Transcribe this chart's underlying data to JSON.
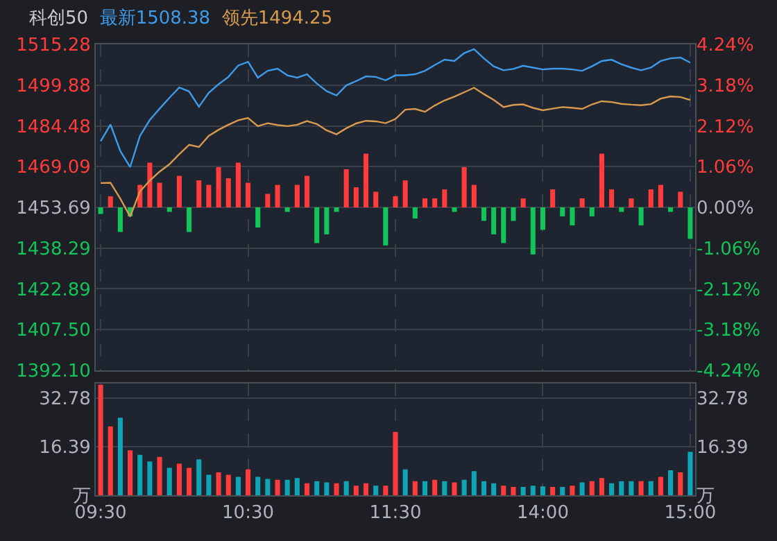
{
  "chart_data": [
    {
      "type": "line",
      "title": "科创50",
      "legend": "top left",
      "grid": true,
      "tick_labels": "y",
      "categories": [
        null,
        null,
        null,
        null,
        null,
        null,
        null,
        null,
        null,
        null,
        null,
        null,
        null,
        null,
        null,
        null,
        null,
        null,
        null,
        null,
        null,
        null,
        null,
        null,
        null,
        null,
        null,
        null,
        null,
        null,
        null,
        null,
        null,
        null,
        null,
        null,
        null,
        null,
        null,
        null,
        null,
        null,
        null,
        null,
        null,
        null,
        null,
        null,
        null,
        null,
        null,
        null,
        null,
        null,
        null,
        null,
        null,
        null,
        null,
        null,
        null
      ],
      "ylim": [
        1392.1,
        1515.28
      ],
      "yticks": [
        {
          "value": 1392.1,
          "label": "1392.10"
        },
        {
          "value": 1407.5,
          "label": "1407.50"
        },
        1422.89,
        1438.29,
        1453.69,
        1469.09,
        1484.48,
        1499.88,
        1515.28
      ],
      "y2lim": [
        -4.24,
        4.24
      ],
      "y2ticks": [
        {
          "value": -4.24,
          "label": "-4.24%"
        },
        {
          "value": -3.18,
          "label": "-3.18%"
        },
        {
          "value": -2.12,
          "label": "-2.12%"
        },
        {
          "value": -1.06,
          "label": "-1.06%"
        },
        {
          "value": 0,
          "label": "0.00%"
        },
        {
          "value": 1.06,
          "label": "1.06%"
        },
        {
          "value": 2.12,
          "label": "2.12%"
        },
        {
          "value": 3.18,
          "label": "3.18%"
        },
        {
          "value": 4.24,
          "label": "4.24%"
        }
      ],
      "series": [
        {
          "type": "bar",
          "base": [
            1453.69,
            1453.69,
            1453.69,
            1453.69,
            1453.69,
            1453.69,
            1453.69,
            1453.69,
            1453.69,
            1453.69,
            1453.69,
            1453.69,
            1453.69,
            1453.69,
            1453.69,
            1453.69,
            1453.69,
            1453.69,
            1453.69,
            1453.69,
            1453.69,
            1453.69,
            1453.69,
            1453.69,
            1453.69,
            1453.69,
            1453.69,
            1453.69,
            1453.69,
            1453.69,
            1453.69,
            1453.69,
            1453.69,
            1453.69,
            1453.69,
            1453.69,
            1453.69,
            1453.69,
            1453.69,
            1453.69,
            1453.69,
            1453.69,
            1453.69,
            1453.69,
            1453.69,
            1453.69,
            1453.69,
            1453.69,
            1453.69,
            1453.69,
            1453.69,
            1453.69,
            1453.69,
            1453.69,
            1453.69,
            1453.69,
            1453.69,
            1453.69,
            1453.69,
            1453.69,
            1453.69
          ],
          "values": [
            -2.5,
            4.2,
            -9.3,
            -3.4,
            8.5,
            16.9,
            9.3,
            -1.7,
            11.9,
            -9.3,
            10.2,
            8.5,
            15.2,
            11.0,
            16.9,
            9.3,
            -7.6,
            5.1,
            8.5,
            -1.7,
            8.5,
            11.9,
            -13.5,
            -10.2,
            -1.7,
            14.4,
            7.6,
            20.3,
            5.9,
            -14.4,
            4.2,
            10.2,
            -4.2,
            3.4,
            3.4,
            6.8,
            -1.7,
            15.2,
            8.5,
            -5.1,
            -10.2,
            -13.5,
            -5.1,
            3.4,
            -17.8,
            -8.5,
            6.8,
            -3.4,
            -6.8,
            3.4,
            -3.4,
            20.3,
            6.8,
            -1.7,
            3.4,
            -6.8,
            6.8,
            8.5,
            -1.7,
            5.9,
            -11.9
          ],
          "colors": [
            "#13c45a",
            "#ff3b3b",
            "#13c45a",
            "#13c45a",
            "#ff3b3b",
            "#ff3b3b",
            "#ff3b3b",
            "#13c45a",
            "#ff3b3b",
            "#13c45a",
            "#ff3b3b",
            "#ff3b3b",
            "#ff3b3b",
            "#ff3b3b",
            "#ff3b3b",
            "#ff3b3b",
            "#13c45a",
            "#ff3b3b",
            "#ff3b3b",
            "#13c45a",
            "#ff3b3b",
            "#ff3b3b",
            "#13c45a",
            "#13c45a",
            "#13c45a",
            "#ff3b3b",
            "#ff3b3b",
            "#ff3b3b",
            "#ff3b3b",
            "#13c45a",
            "#ff3b3b",
            "#ff3b3b",
            "#13c45a",
            "#ff3b3b",
            "#ff3b3b",
            "#ff3b3b",
            "#13c45a",
            "#ff3b3b",
            "#ff3b3b",
            "#13c45a",
            "#13c45a",
            "#13c45a",
            "#13c45a",
            "#ff3b3b",
            "#13c45a",
            "#13c45a",
            "#ff3b3b",
            "#13c45a",
            "#13c45a",
            "#ff3b3b",
            "#13c45a",
            "#ff3b3b",
            "#ff3b3b",
            "#13c45a",
            "#ff3b3b",
            "#13c45a",
            "#ff3b3b",
            "#ff3b3b",
            "#13c45a",
            "#ff3b3b",
            "#13c45a"
          ]
        },
        {
          "type": "line",
          "name": "最新1508.38",
          "color": "#3d9be9",
          "values": [
            1478.7,
            1485,
            1475,
            1468.9,
            1480.7,
            1486.7,
            1491,
            1495.1,
            1499,
            1497.5,
            1491.7,
            1497,
            1500.2,
            1503,
            1507.3,
            1508.7,
            1502.7,
            1505.3,
            1506.1,
            1503.6,
            1502.7,
            1504,
            1500.5,
            1497.6,
            1496,
            1499.8,
            1501.4,
            1503.2,
            1503,
            1501.7,
            1503.6,
            1503.6,
            1504,
            1505.3,
            1507.5,
            1509.5,
            1509,
            1512,
            1513.5,
            1510,
            1507,
            1505.5,
            1506,
            1507.2,
            1506.5,
            1505.8,
            1506.1,
            1506.1,
            1505.8,
            1505.3,
            1507,
            1509,
            1509.5,
            1507.8,
            1506.5,
            1505.5,
            1506.5,
            1509,
            1510,
            1510.3,
            1508.4
          ]
        },
        {
          "type": "line",
          "name": "领先1494.25",
          "color": "#d89a4f",
          "values": [
            1462.9,
            1463,
            1457.0,
            1450.2,
            1459.7,
            1463.8,
            1467.2,
            1470,
            1473.8,
            1477.3,
            1476.5,
            1480.7,
            1483,
            1484.9,
            1486.6,
            1487.5,
            1484.4,
            1485.5,
            1484.8,
            1484.4,
            1484.9,
            1486.3,
            1485.2,
            1482.8,
            1481.3,
            1483.6,
            1485.4,
            1486.4,
            1486.2,
            1485.5,
            1487.1,
            1490.6,
            1490.9,
            1489.8,
            1492.2,
            1494.1,
            1495.5,
            1497.2,
            1498.9,
            1496.5,
            1494.3,
            1491.6,
            1492.4,
            1492.6,
            1491.3,
            1490.4,
            1491,
            1491.6,
            1491.3,
            1490.9,
            1492.6,
            1493.8,
            1493.5,
            1492.8,
            1492.5,
            1492.3,
            1492.7,
            1494.8,
            1495.6,
            1495.4,
            1494.3
          ]
        }
      ]
    },
    {
      "type": "bar",
      "grid": true,
      "categories": [
        "09:30",
        null,
        null,
        null,
        null,
        null,
        null,
        null,
        null,
        null,
        null,
        null,
        null,
        null,
        null,
        "10:30",
        null,
        null,
        null,
        null,
        null,
        null,
        null,
        null,
        null,
        null,
        null,
        null,
        null,
        null,
        "11:30",
        null,
        null,
        null,
        null,
        null,
        null,
        null,
        null,
        null,
        null,
        null,
        null,
        null,
        null,
        "14:00",
        null,
        null,
        null,
        null,
        null,
        null,
        null,
        null,
        null,
        null,
        null,
        null,
        null,
        null,
        "15:00"
      ],
      "ylim": [
        0,
        37.5
      ],
      "yticks": [
        {
          "value": 0,
          "label": "万"
        },
        16.39,
        32.78
      ],
      "y2lim": [
        0,
        37.5
      ],
      "y2ticks": [
        {
          "value": 0,
          "label": "万"
        },
        16.39,
        32.78
      ],
      "values": [
        37.2,
        23.2,
        26.1,
        15.1,
        13.6,
        11.4,
        12.9,
        9.2,
        10.6,
        9.2,
        12.1,
        6.9,
        7.7,
        6.9,
        6.2,
        8.7,
        6.2,
        5.5,
        5.2,
        5.2,
        5.8,
        4.0,
        4.7,
        4.3,
        4.0,
        4.7,
        3.2,
        4.0,
        3.2,
        3.2,
        21.3,
        8.7,
        4.7,
        4.7,
        5.2,
        4.7,
        4.3,
        5.2,
        8.1,
        4.7,
        4.0,
        3.2,
        2.8,
        2.8,
        3.2,
        3.0,
        2.8,
        2.8,
        3.2,
        4.3,
        4.7,
        5.8,
        4.0,
        4.7,
        4.7,
        4.7,
        4.7,
        6.2,
        8.4,
        7.7,
        14.6
      ],
      "colors": [
        "#ff3b3b",
        "#ff3b3b",
        "#10a5b5",
        "#ff3b3b",
        "#10a5b5",
        "#10a5b5",
        "#ff3b3b",
        "#10a5b5",
        "#ff3b3b",
        "#ff3b3b",
        "#10a5b5",
        "#10a5b5",
        "#ff3b3b",
        "#ff3b3b",
        "#10a5b5",
        "#ff3b3b",
        "#10a5b5",
        "#10a5b5",
        "#ff3b3b",
        "#10a5b5",
        "#10a5b5",
        "#ff3b3b",
        "#10a5b5",
        "#10a5b5",
        "#ff3b3b",
        "#10a5b5",
        "#ff3b3b",
        "#ff3b3b",
        "#10a5b5",
        "#ff3b3b",
        "#ff3b3b",
        "#10a5b5",
        "#ff3b3b",
        "#10a5b5",
        "#ff3b3b",
        "#10a5b5",
        "#ff3b3b",
        "#10a5b5",
        "#10a5b5",
        "#10a5b5",
        "#10a5b5",
        "#ff3b3b",
        "#ff3b3b",
        "#10a5b5",
        "#10a5b5",
        "#10a5b5",
        "#ff3b3b",
        "#10a5b5",
        "#ff3b3b",
        "#10a5b5",
        "#ff3b3b",
        "#ff3b3b",
        "#10a5b5",
        "#10a5b5",
        "#10a5b5",
        "#ff3b3b",
        "#10a5b5",
        "#ff3b3b",
        "#10a5b5",
        "#ff3b3b",
        "#10a5b5"
      ]
    }
  ]
}
